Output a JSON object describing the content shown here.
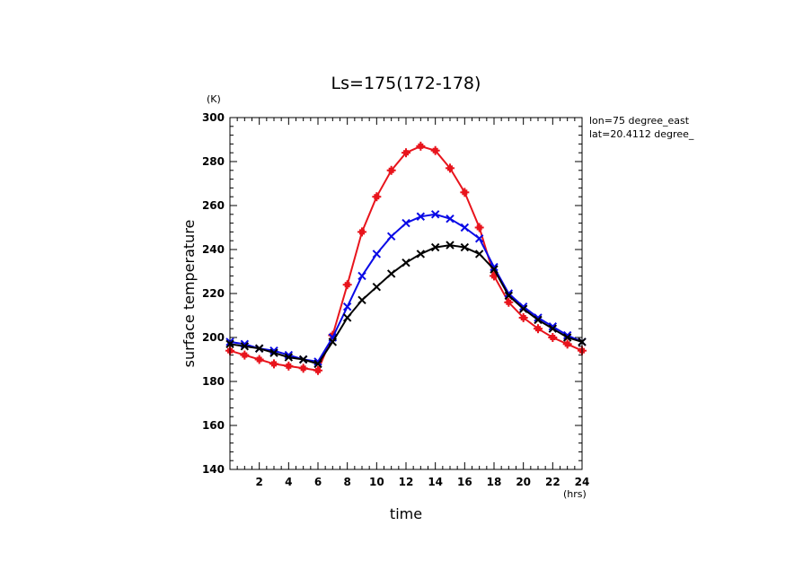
{
  "chart_data": {
    "type": "line",
    "title": "Ls=175(172-178)",
    "xlabel": "time",
    "ylabel": "surface temperature",
    "x_unit": "(hrs)",
    "y_unit": "(K)",
    "annotations": [
      "lon=75 degree_east",
      "lat=20.4112 degree_"
    ],
    "xlim": [
      0,
      24
    ],
    "ylim": [
      140,
      300
    ],
    "xticks": [
      2,
      4,
      6,
      8,
      10,
      12,
      14,
      16,
      18,
      20,
      22,
      24
    ],
    "yticks": [
      140,
      160,
      180,
      200,
      220,
      240,
      260,
      280,
      300
    ],
    "grid": false,
    "x": [
      0,
      1,
      2,
      3,
      4,
      5,
      6,
      7,
      8,
      9,
      10,
      11,
      12,
      13,
      14,
      15,
      16,
      17,
      18,
      19,
      20,
      21,
      22,
      23,
      24
    ],
    "series": [
      {
        "color": "#e8141c",
        "marker": "plus",
        "values": [
          194,
          192,
          190,
          188,
          187,
          186,
          185,
          201,
          224,
          248,
          264,
          276,
          284,
          287,
          285,
          277,
          266,
          250,
          228,
          216,
          209,
          204,
          200,
          197,
          194
        ]
      },
      {
        "color": "#0a0ae6",
        "marker": "x",
        "values": [
          198,
          197,
          195,
          194,
          192,
          190,
          189,
          200,
          214,
          228,
          238,
          246,
          252,
          255,
          256,
          254,
          250,
          245,
          232,
          220,
          214,
          209,
          205,
          201,
          198
        ]
      },
      {
        "color": "#000000",
        "marker": "x",
        "values": [
          197,
          196,
          195,
          193,
          191,
          190,
          188,
          198,
          209,
          217,
          223,
          229,
          234,
          238,
          241,
          242,
          241,
          238,
          231,
          219,
          213,
          208,
          204,
          200,
          198
        ]
      }
    ]
  }
}
